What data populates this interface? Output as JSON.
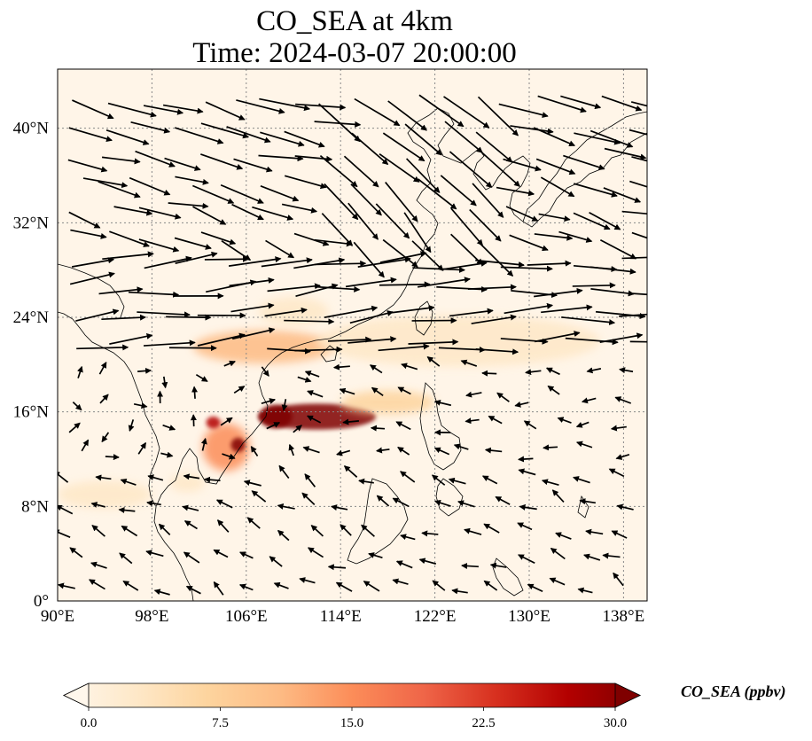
{
  "map": {
    "title_line1": "CO_SEA at 4km",
    "title_line2": "Time: 2024-03-07 20:00:00",
    "extent": {
      "lon": [
        90,
        140
      ],
      "lat": [
        0,
        45
      ]
    },
    "lon_ticks": [
      {
        "value": 90,
        "label": "90°E"
      },
      {
        "value": 98,
        "label": "98°E"
      },
      {
        "value": 106,
        "label": "106°E"
      },
      {
        "value": 114,
        "label": "114°E"
      },
      {
        "value": 122,
        "label": "122°E"
      },
      {
        "value": 130,
        "label": "130°E"
      },
      {
        "value": 138,
        "label": "138°E"
      }
    ],
    "lat_ticks": [
      {
        "value": 0,
        "label": "0°"
      },
      {
        "value": 8,
        "label": "8°N"
      },
      {
        "value": 16,
        "label": "16°N"
      },
      {
        "value": 24,
        "label": "24°N"
      },
      {
        "value": 32,
        "label": "32°N"
      },
      {
        "value": 40,
        "label": "40°N"
      }
    ],
    "gridlines": true,
    "field_colors": {
      "background": "#fff5e8",
      "low": "#fde0be",
      "mid": "#fc8d59",
      "high": "#b30000",
      "max": "#7f0000"
    },
    "plumes": [
      {
        "lon": 107.5,
        "lat": 21.5,
        "rx": 6.0,
        "ry": 1.4,
        "level": 0.35
      },
      {
        "lon": 112.0,
        "lat": 15.6,
        "rx": 5.0,
        "ry": 1.1,
        "level": 0.95
      },
      {
        "lon": 108.5,
        "lat": 15.6,
        "rx": 1.4,
        "ry": 1.0,
        "level": 1.0
      },
      {
        "lon": 104.3,
        "lat": 13.0,
        "rx": 2.0,
        "ry": 2.0,
        "level": 0.55
      },
      {
        "lon": 105.3,
        "lat": 13.2,
        "rx": 0.6,
        "ry": 0.6,
        "level": 1.0
      },
      {
        "lon": 103.2,
        "lat": 15.1,
        "rx": 0.6,
        "ry": 0.5,
        "level": 0.9
      },
      {
        "lon": 118.0,
        "lat": 16.8,
        "rx": 4.0,
        "ry": 1.0,
        "level": 0.25
      },
      {
        "lon": 110.0,
        "lat": 24.5,
        "rx": 3.0,
        "ry": 1.2,
        "level": 0.15
      },
      {
        "lon": 124.0,
        "lat": 22.0,
        "rx": 12.0,
        "ry": 2.2,
        "level": 0.1
      },
      {
        "lon": 94.0,
        "lat": 9.0,
        "rx": 4.0,
        "ry": 1.2,
        "level": 0.12
      },
      {
        "lon": 101.0,
        "lat": 10.0,
        "rx": 1.5,
        "ry": 0.8,
        "level": 0.15
      }
    ]
  },
  "colorbar": {
    "label": "CO_SEA (ppbv)",
    "min": 0,
    "max": 30,
    "ticks": [
      {
        "value": 0,
        "label": "0.0"
      },
      {
        "value": 7.5,
        "label": "7.5"
      },
      {
        "value": 15,
        "label": "15.0"
      },
      {
        "value": 22.5,
        "label": "22.5"
      },
      {
        "value": 30,
        "label": "30.0"
      }
    ],
    "colors": [
      "#fff7ec",
      "#fee8c8",
      "#fdd49e",
      "#fdbb84",
      "#fc8d59",
      "#ef6548",
      "#d7301f",
      "#b30000",
      "#7f0000"
    ],
    "extend": "both"
  }
}
